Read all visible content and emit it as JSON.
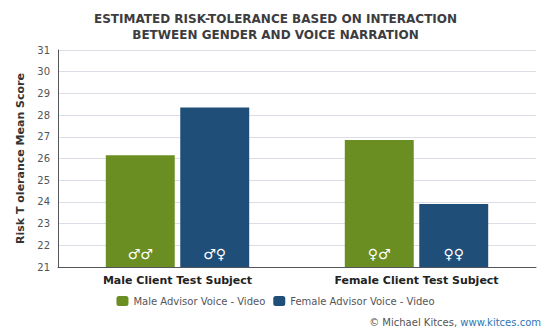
{
  "chart_data": {
    "type": "bar",
    "title": "ESTIMATED RISK-TOLERANCE BASED ON INTERACTION\nBETWEEN GENDER AND VOICE NARRATION",
    "ylabel": "Risk T olerance Mean Score",
    "categories": [
      "Male Client Test Subject",
      "Female Client Test Subject"
    ],
    "series": [
      {
        "name": "Male Advisor Voice - Video",
        "color": "#6b8e23",
        "values": [
          26.15,
          26.85
        ],
        "symbols": [
          "♂♂",
          "♀♂"
        ]
      },
      {
        "name": "Female Advisor Voice - Video",
        "color": "#1f4e79",
        "values": [
          28.35,
          23.9
        ],
        "symbols": [
          "♂♀",
          "♀♀"
        ]
      }
    ],
    "ylim": [
      21,
      31
    ],
    "yticks": [
      21,
      22,
      23,
      24,
      25,
      26,
      27,
      28,
      29,
      30,
      31
    ],
    "grid": true,
    "legend": "bottom",
    "annotations": [
      {
        "text": "© Michael Kitces,",
        "color": "#555555"
      },
      {
        "text": "www.kitces.com",
        "color": "#2e75b6"
      }
    ]
  }
}
